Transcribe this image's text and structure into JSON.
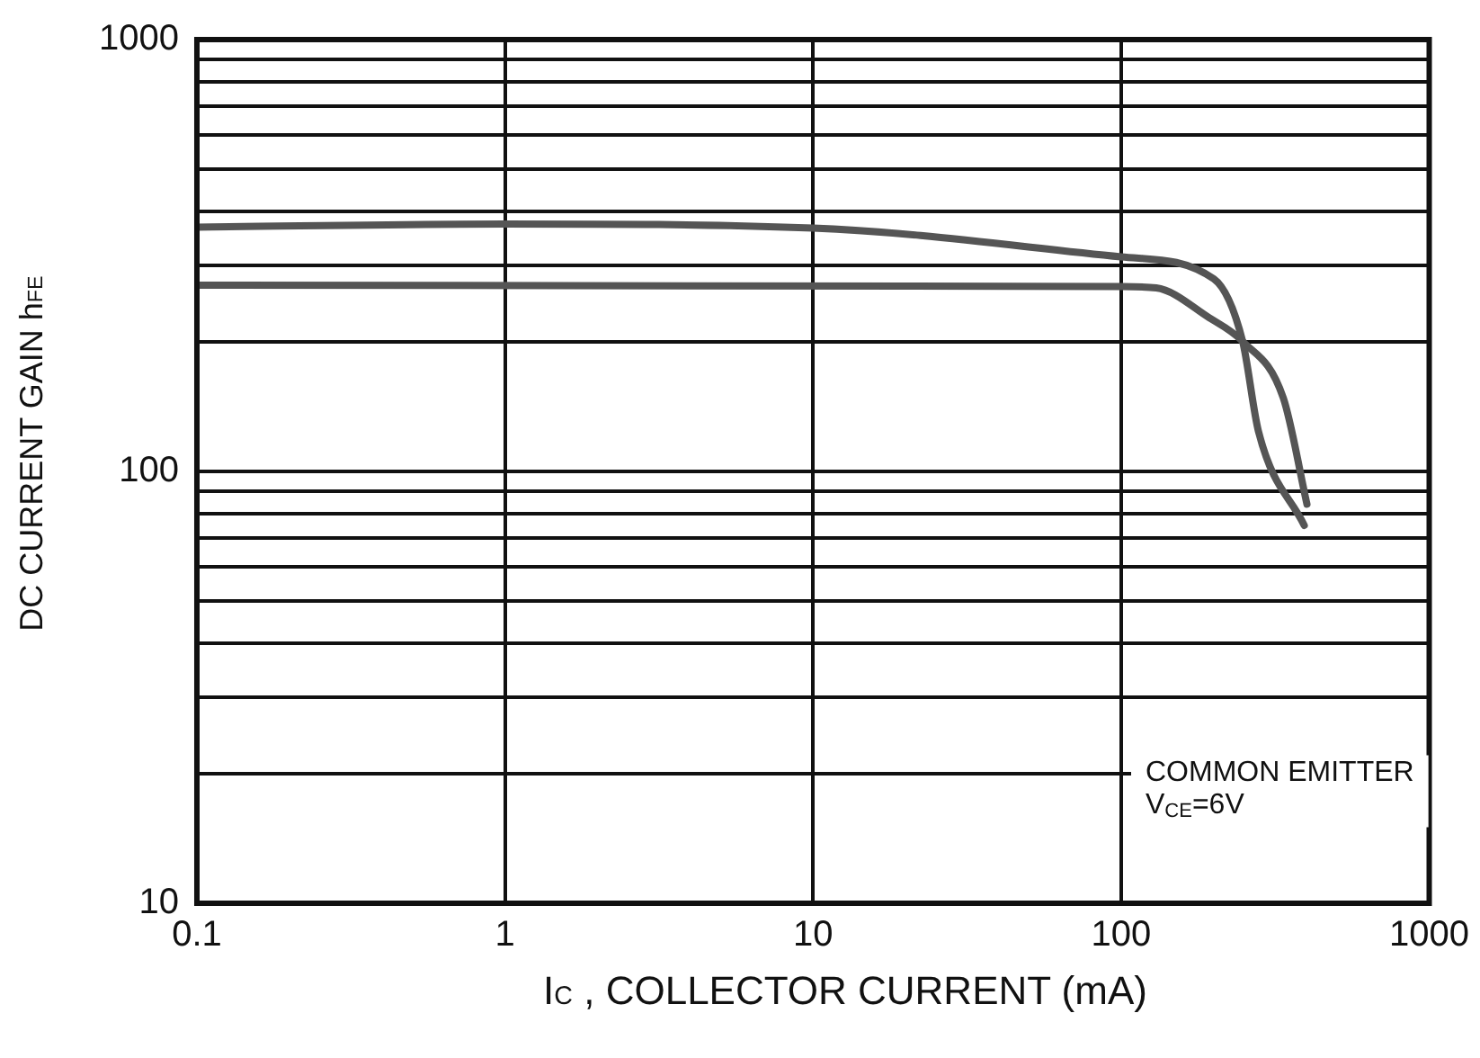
{
  "chart_data": {
    "type": "line",
    "xlabel": "I$_{C}$ , COLLECTOR CURRENT (mA)",
    "ylabel": "DC CURRENT GAIN h$_{FE}$",
    "log": "xy",
    "grid": true,
    "marker": "none",
    "line_style": "solid",
    "xlim": [
      0.1,
      1000
    ],
    "xticks": [
      0.1,
      1,
      10,
      100,
      1000
    ],
    "ylim": [
      10,
      1000
    ],
    "yticks": [
      10,
      {
        "value": 20,
        "label": null
      },
      {
        "value": 30,
        "label": null
      },
      {
        "value": 40,
        "label": null
      },
      {
        "value": 50,
        "label": null
      },
      {
        "value": 60,
        "label": null
      },
      {
        "value": 70,
        "label": null
      },
      {
        "value": 80,
        "label": null
      },
      {
        "value": 90,
        "label": null
      },
      100,
      {
        "value": 200,
        "label": null
      },
      {
        "value": 300,
        "label": null
      },
      {
        "value": 400,
        "label": null
      },
      {
        "value": 500,
        "label": null
      },
      {
        "value": 600,
        "label": null
      },
      {
        "value": 700,
        "label": null
      },
      {
        "value": 800,
        "label": null
      },
      {
        "value": 900,
        "label": null
      },
      1000
    ],
    "annotations": [
      "COMMON EMITTER",
      "V$_{CE}$=6V"
    ],
    "series": [
      {
        "color": "#555555",
        "x": [
          0.1,
          1,
          10,
          100,
          200,
          248,
          279,
          393
        ],
        "values": [
          368,
          374,
          366,
          314,
          279,
          200,
          124,
          75
        ]
      },
      {
        "color": "#555555",
        "x": [
          0.1,
          100,
          130,
          193,
          248,
          336,
          401
        ],
        "values": [
          270,
          268,
          266,
          227,
          200,
          148,
          84
        ]
      }
    ]
  }
}
